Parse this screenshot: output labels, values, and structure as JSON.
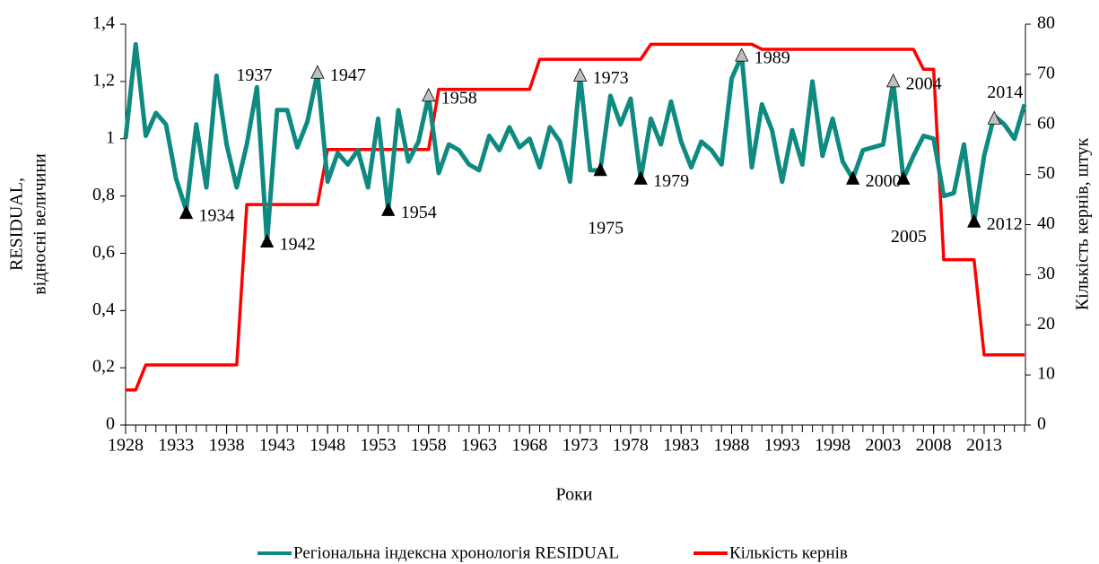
{
  "chart_data": {
    "type": "line",
    "x_label": "Роки",
    "y_label": [
      "RESIDUAL,",
      "відносні величини"
    ],
    "y2_label": "Кількість кернів,  штук",
    "x": [
      1928,
      1929,
      1930,
      1931,
      1932,
      1933,
      1934,
      1935,
      1936,
      1937,
      1938,
      1939,
      1940,
      1941,
      1942,
      1943,
      1944,
      1945,
      1946,
      1947,
      1948,
      1949,
      1950,
      1951,
      1952,
      1953,
      1954,
      1955,
      1956,
      1957,
      1958,
      1959,
      1960,
      1961,
      1962,
      1963,
      1964,
      1965,
      1966,
      1967,
      1968,
      1969,
      1970,
      1971,
      1972,
      1973,
      1974,
      1975,
      1976,
      1977,
      1978,
      1979,
      1980,
      1981,
      1982,
      1983,
      1984,
      1985,
      1986,
      1987,
      1988,
      1989,
      1990,
      1991,
      1992,
      1993,
      1994,
      1995,
      1996,
      1997,
      1998,
      1999,
      2000,
      2001,
      2002,
      2003,
      2004,
      2005,
      2006,
      2007,
      2008,
      2009,
      2010,
      2011,
      2012,
      2013,
      2014,
      2015,
      2016,
      2017
    ],
    "xlim": [
      1928,
      2017
    ],
    "xticks": [
      1928,
      1933,
      1938,
      1943,
      1948,
      1953,
      1958,
      1963,
      1968,
      1973,
      1978,
      1983,
      1988,
      1993,
      1998,
      2003,
      2008,
      2013
    ],
    "ylim": [
      0,
      1.4
    ],
    "yticks": [
      {
        "value": 0,
        "label": "0"
      },
      {
        "value": 0.2,
        "label": "0,2"
      },
      {
        "value": 0.4,
        "label": "0,4"
      },
      {
        "value": 0.6,
        "label": "0,6"
      },
      {
        "value": 0.8,
        "label": "0,8"
      },
      {
        "value": 1,
        "label": "1"
      },
      {
        "value": 1.2,
        "label": "1,2"
      },
      {
        "value": 1.4,
        "label": "1,4"
      }
    ],
    "y2lim": [
      0,
      80
    ],
    "y2ticks": [
      0,
      10,
      20,
      30,
      40,
      50,
      60,
      70,
      80
    ],
    "series": [
      {
        "name": "Регіональна індексна хронологія RESIDUAL",
        "color": "#0f8a80",
        "values": [
          1.0,
          1.33,
          1.01,
          1.09,
          1.05,
          0.86,
          0.75,
          1.05,
          0.83,
          1.22,
          0.98,
          0.83,
          0.98,
          1.18,
          0.64,
          1.1,
          1.1,
          0.97,
          1.06,
          1.23,
          0.85,
          0.95,
          0.91,
          0.96,
          0.83,
          1.07,
          0.75,
          1.1,
          0.92,
          0.99,
          1.15,
          0.88,
          0.98,
          0.96,
          0.91,
          0.89,
          1.01,
          0.96,
          1.04,
          0.97,
          1.0,
          0.9,
          1.04,
          0.99,
          0.85,
          1.22,
          0.89,
          0.89,
          1.15,
          1.05,
          1.14,
          0.86,
          1.07,
          0.98,
          1.13,
          0.99,
          0.9,
          0.99,
          0.96,
          0.91,
          1.21,
          1.29,
          0.9,
          1.12,
          1.03,
          0.85,
          1.03,
          0.91,
          1.2,
          0.94,
          1.07,
          0.92,
          0.86,
          0.96,
          0.97,
          0.98,
          1.2,
          0.86,
          0.94,
          1.01,
          1.0,
          0.8,
          0.81,
          0.98,
          0.71,
          0.94,
          1.08,
          1.05,
          1.0,
          1.12
        ]
      },
      {
        "name": "Кількість кернів",
        "color": "#ff0000",
        "axis": "y2",
        "values": [
          7,
          7,
          12,
          12,
          12,
          12,
          12,
          12,
          12,
          12,
          12,
          12,
          44,
          44,
          44,
          44,
          44,
          44,
          44,
          44,
          55,
          55,
          55,
          55,
          55,
          55,
          55,
          55,
          55,
          55,
          55,
          67,
          67,
          67,
          67,
          67,
          67,
          67,
          67,
          67,
          67,
          73,
          73,
          73,
          73,
          73,
          73,
          73,
          73,
          73,
          73,
          73,
          76,
          76,
          76,
          76,
          76,
          76,
          76,
          76,
          76,
          76,
          76,
          75,
          75,
          75,
          75,
          75,
          75,
          75,
          75,
          75,
          75,
          75,
          75,
          75,
          75,
          75,
          75,
          71,
          71,
          33,
          33,
          33,
          33,
          14,
          14,
          14,
          14,
          14
        ]
      }
    ],
    "annotations": [
      {
        "x": 1934,
        "y": 0.74,
        "marker": "filled",
        "side": "right"
      },
      {
        "x": 1937,
        "y": 1.22,
        "marker": "none",
        "side": "right"
      },
      {
        "x": 1942,
        "y": 0.64,
        "marker": "filled",
        "side": "right"
      },
      {
        "x": 1947,
        "y": 1.23,
        "marker": "open",
        "side": "right"
      },
      {
        "x": 1954,
        "y": 0.75,
        "marker": "filled",
        "side": "right"
      },
      {
        "x": 1958,
        "y": 1.15,
        "marker": "open",
        "side": "right"
      },
      {
        "x": 1973,
        "y": 1.22,
        "marker": "open",
        "side": "right"
      },
      {
        "x": 1975,
        "y": 0.89,
        "marker": "filled",
        "side": "below"
      },
      {
        "x": 1979,
        "y": 0.86,
        "marker": "filled",
        "side": "right"
      },
      {
        "x": 1989,
        "y": 1.29,
        "marker": "open",
        "side": "right"
      },
      {
        "x": 2000,
        "y": 0.86,
        "marker": "filled",
        "side": "right"
      },
      {
        "x": 2004,
        "y": 1.2,
        "marker": "open",
        "side": "right"
      },
      {
        "x": 2005,
        "y": 0.86,
        "marker": "filled",
        "side": "below"
      },
      {
        "x": 2012,
        "y": 0.71,
        "marker": "filled",
        "side": "right"
      },
      {
        "x": 2014,
        "y": 1.07,
        "marker": "open",
        "side": "above"
      }
    ]
  }
}
